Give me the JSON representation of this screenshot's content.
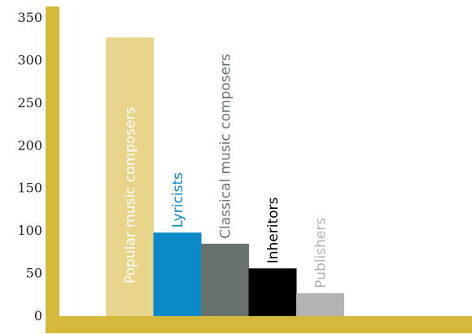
{
  "chart_data": {
    "type": "bar",
    "categories": [
      "Popular music composers",
      "Lyricists",
      "Classical music composers",
      "Inheritors",
      "Publishers"
    ],
    "values": [
      327,
      98,
      85,
      56,
      27
    ],
    "bar_colors": [
      "#e8d48a",
      "#0a8ac8",
      "#68736e",
      "#000000",
      "#b3b3b3"
    ],
    "label_colors": [
      "#ffffff",
      "#0a8ac8",
      "#68736e",
      "#000000",
      "#b3b3b3"
    ],
    "label_position": [
      "inside",
      "above",
      "above",
      "above",
      "above"
    ],
    "axis_color": "#d4b93a",
    "ylim": [
      0,
      350
    ],
    "yticks": [
      "0",
      "50",
      "100",
      "150",
      "200",
      "250",
      "300",
      "350"
    ],
    "title": "",
    "xlabel": "",
    "ylabel": "",
    "grid": false,
    "legend": false
  }
}
